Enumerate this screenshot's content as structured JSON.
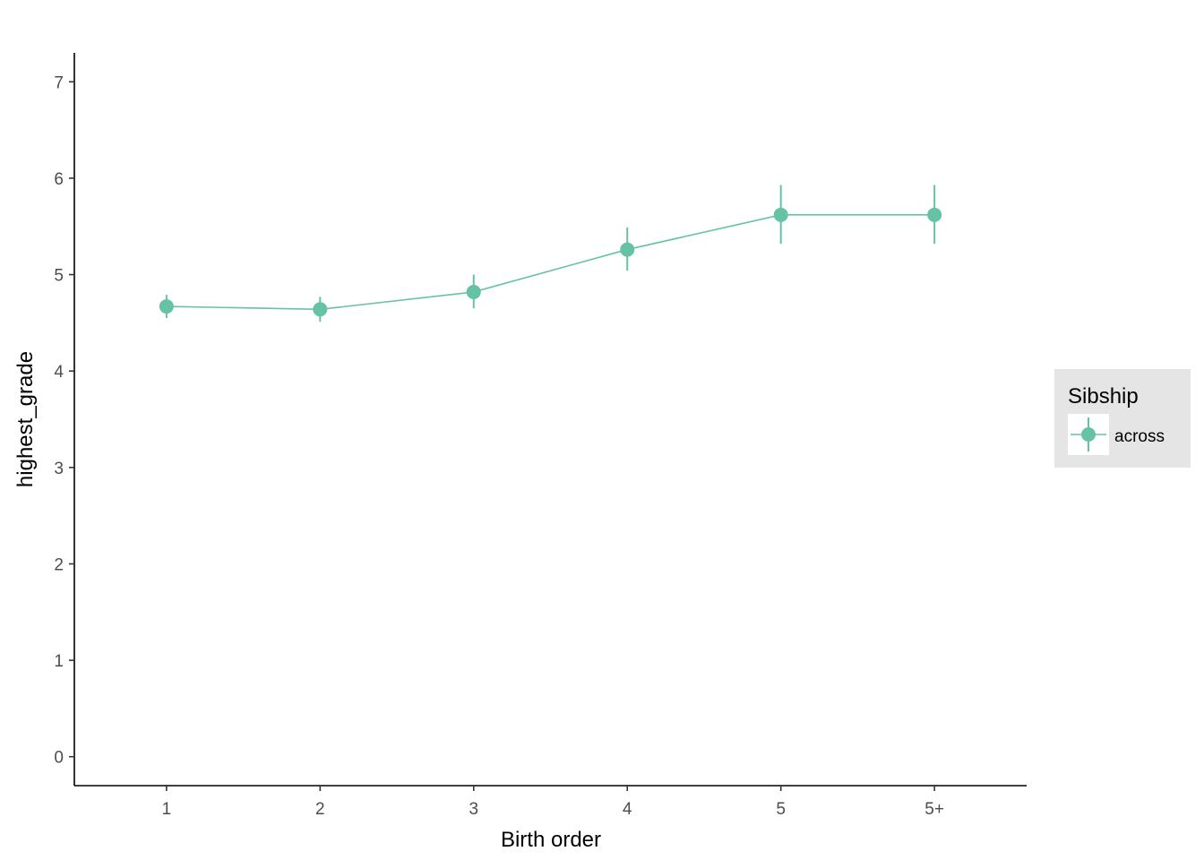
{
  "chart_data": {
    "type": "line",
    "title": "",
    "xlabel": "Birth order",
    "ylabel": "highest_grade",
    "categories": [
      "1",
      "2",
      "3",
      "4",
      "5",
      "5+"
    ],
    "ylim": [
      -0.3,
      7.3
    ],
    "yticks": [
      0,
      1,
      2,
      3,
      4,
      5,
      6,
      7
    ],
    "grid": false,
    "legend": {
      "title": "Sibship",
      "position": "right",
      "entries": [
        "across"
      ]
    },
    "series": [
      {
        "name": "across",
        "color": "#66c2a5",
        "values": [
          4.67,
          4.64,
          4.82,
          5.26,
          5.62,
          5.62
        ],
        "lower": [
          4.55,
          4.51,
          4.65,
          5.04,
          5.32,
          5.32
        ],
        "upper": [
          4.79,
          4.77,
          5.0,
          5.49,
          5.93,
          5.93
        ]
      }
    ]
  }
}
